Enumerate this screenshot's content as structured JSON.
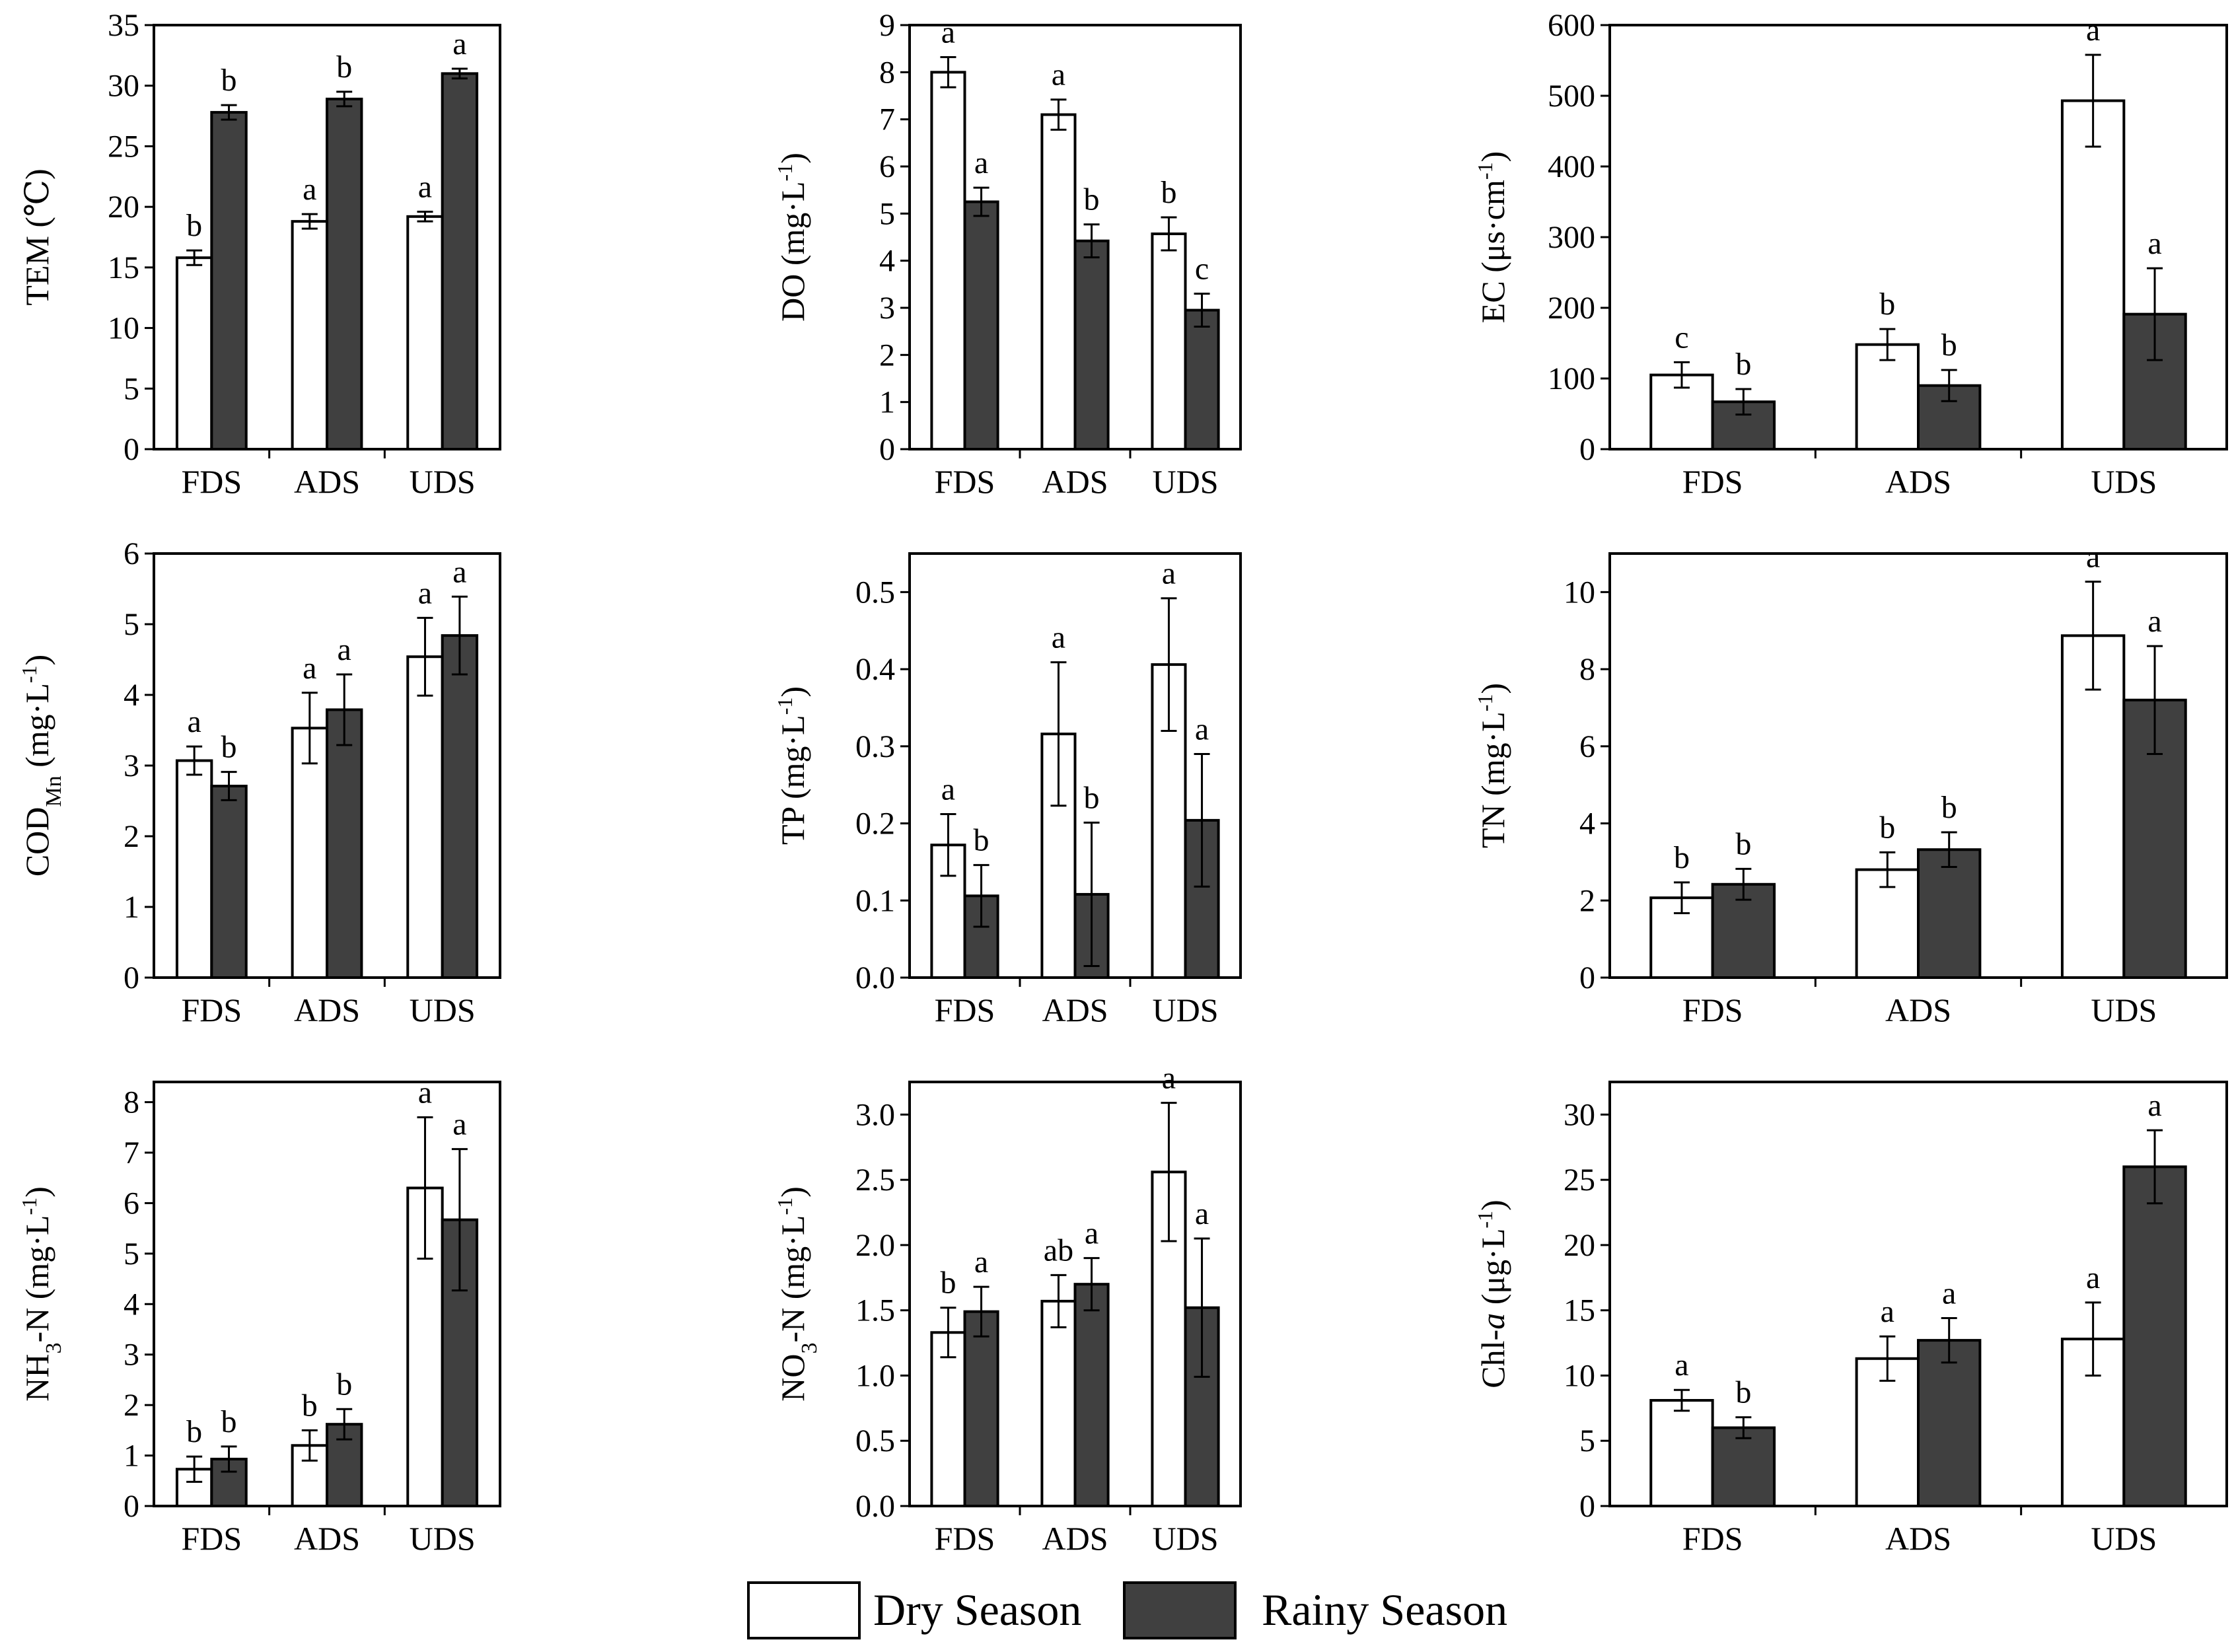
{
  "colors": {
    "dry": "#ffffff",
    "rainy": "#404040",
    "axis": "#000000"
  },
  "legend": {
    "dry_label": "Dry Season",
    "rainy_label": "Rainy Season"
  },
  "chart_data": [
    {
      "type": "bar",
      "id": "tem",
      "ylabel": "TEM (℃)",
      "ylim": [
        0,
        35
      ],
      "yticks": [
        0,
        5,
        10,
        15,
        20,
        25,
        30,
        35
      ],
      "tick_format": "0",
      "categories": [
        "FDS",
        "ADS",
        "UDS"
      ],
      "series": [
        {
          "name": "Dry Season",
          "values": [
            15.8,
            18.8,
            19.2
          ],
          "errors": [
            0.6,
            0.6,
            0.4
          ],
          "letters": [
            "b",
            "a",
            "a"
          ]
        },
        {
          "name": "Rainy Season",
          "values": [
            27.8,
            28.9,
            31.0
          ],
          "errors": [
            0.6,
            0.6,
            0.4
          ],
          "letters": [
            "b",
            "b",
            "a"
          ]
        }
      ]
    },
    {
      "type": "bar",
      "id": "do",
      "ylabel": "DO (mg·L⁻¹)",
      "ylim": [
        0,
        9
      ],
      "yticks": [
        0,
        1,
        2,
        3,
        4,
        5,
        6,
        7,
        8,
        9
      ],
      "tick_format": "0",
      "categories": [
        "FDS",
        "ADS",
        "UDS"
      ],
      "series": [
        {
          "name": "Dry Season",
          "values": [
            8.0,
            7.1,
            4.57
          ],
          "errors": [
            0.32,
            0.32,
            0.35
          ],
          "letters": [
            "a",
            "a",
            "b"
          ]
        },
        {
          "name": "Rainy Season",
          "values": [
            5.25,
            4.42,
            2.95
          ],
          "errors": [
            0.3,
            0.35,
            0.35
          ],
          "letters": [
            "a",
            "b",
            "c"
          ]
        }
      ]
    },
    {
      "type": "bar",
      "id": "ec",
      "ylabel": "EC (μs·cm⁻¹)",
      "ylim": [
        0,
        600
      ],
      "yticks": [
        0,
        100,
        200,
        300,
        400,
        500,
        600
      ],
      "tick_format": "0",
      "categories": [
        "FDS",
        "ADS",
        "UDS"
      ],
      "series": [
        {
          "name": "Dry Season",
          "values": [
            105,
            148,
            493
          ],
          "errors": [
            18,
            22,
            65
          ],
          "letters": [
            "c",
            "b",
            "a"
          ]
        },
        {
          "name": "Rainy Season",
          "values": [
            67,
            90,
            191
          ],
          "errors": [
            18,
            22,
            65
          ],
          "letters": [
            "b",
            "b",
            "a"
          ]
        }
      ]
    },
    {
      "type": "bar",
      "id": "codmn",
      "ylabel": "CODMn (mg·L⁻¹)",
      "ylim": [
        0,
        6
      ],
      "yticks": [
        0,
        1,
        2,
        3,
        4,
        5,
        6
      ],
      "tick_format": "0",
      "categories": [
        "FDS",
        "ADS",
        "UDS"
      ],
      "series": [
        {
          "name": "Dry Season",
          "values": [
            3.07,
            3.53,
            4.54
          ],
          "errors": [
            0.2,
            0.5,
            0.55
          ],
          "letters": [
            "a",
            "a",
            "a"
          ]
        },
        {
          "name": "Rainy Season",
          "values": [
            2.71,
            3.79,
            4.84
          ],
          "errors": [
            0.2,
            0.5,
            0.55
          ],
          "letters": [
            "b",
            "a",
            "a"
          ]
        }
      ]
    },
    {
      "type": "bar",
      "id": "tp",
      "ylabel": "TP (mg·L⁻¹)",
      "ylim": [
        0,
        0.55
      ],
      "yticks": [
        0.0,
        0.1,
        0.2,
        0.3,
        0.4,
        0.5
      ],
      "tick_format": "0.0",
      "categories": [
        "FDS",
        "ADS",
        "UDS"
      ],
      "series": [
        {
          "name": "Dry Season",
          "values": [
            0.172,
            0.316,
            0.406
          ],
          "errors": [
            0.04,
            0.093,
            0.086
          ],
          "letters": [
            "a",
            "a",
            "a"
          ]
        },
        {
          "name": "Rainy Season",
          "values": [
            0.106,
            0.108,
            0.204
          ],
          "errors": [
            0.04,
            0.093,
            0.086
          ],
          "letters": [
            "b",
            "b",
            "a"
          ]
        }
      ]
    },
    {
      "type": "bar",
      "id": "tn",
      "ylabel": "TN (mg·L⁻¹)",
      "ylim": [
        0,
        11
      ],
      "yticks": [
        0,
        2,
        4,
        6,
        8,
        10
      ],
      "tick_format": "0",
      "categories": [
        "FDS",
        "ADS",
        "UDS"
      ],
      "series": [
        {
          "name": "Dry Season",
          "values": [
            2.07,
            2.8,
            8.87
          ],
          "errors": [
            0.4,
            0.45,
            1.4
          ],
          "letters": [
            "b",
            "b",
            "a"
          ]
        },
        {
          "name": "Rainy Season",
          "values": [
            2.42,
            3.32,
            7.2
          ],
          "errors": [
            0.4,
            0.45,
            1.4
          ],
          "letters": [
            "b",
            "b",
            "a"
          ]
        }
      ]
    },
    {
      "type": "bar",
      "id": "nh3n",
      "ylabel": "NH3-N (mg·L⁻¹)",
      "ylim": [
        0,
        8.4
      ],
      "yticks": [
        0,
        1,
        2,
        3,
        4,
        5,
        6,
        7,
        8
      ],
      "tick_format": "0",
      "categories": [
        "FDS",
        "ADS",
        "UDS"
      ],
      "series": [
        {
          "name": "Dry Season",
          "values": [
            0.73,
            1.2,
            6.3
          ],
          "errors": [
            0.25,
            0.3,
            1.4
          ],
          "letters": [
            "b",
            "b",
            "a"
          ]
        },
        {
          "name": "Rainy Season",
          "values": [
            0.93,
            1.62,
            5.67
          ],
          "errors": [
            0.25,
            0.3,
            1.4
          ],
          "letters": [
            "b",
            "b",
            "a"
          ]
        }
      ]
    },
    {
      "type": "bar",
      "id": "no3n",
      "ylabel": "NO3-N (mg·L⁻¹)",
      "ylim": [
        0,
        3.25
      ],
      "yticks": [
        0.0,
        0.5,
        1.0,
        1.5,
        2.0,
        2.5,
        3.0
      ],
      "tick_format": "0.0",
      "categories": [
        "FDS",
        "ADS",
        "UDS"
      ],
      "series": [
        {
          "name": "Dry Season",
          "values": [
            1.33,
            1.57,
            2.56
          ],
          "errors": [
            0.19,
            0.2,
            0.53
          ],
          "letters": [
            "b",
            "ab",
            "a"
          ]
        },
        {
          "name": "Rainy Season",
          "values": [
            1.49,
            1.7,
            1.52
          ],
          "errors": [
            0.19,
            0.2,
            0.53
          ],
          "letters": [
            "a",
            "a",
            "a"
          ]
        }
      ]
    },
    {
      "type": "bar",
      "id": "chla",
      "ylabel": "Chl-a (μg·L⁻¹)",
      "ylim": [
        0,
        32.5
      ],
      "yticks": [
        0,
        5,
        10,
        15,
        20,
        25,
        30
      ],
      "tick_format": "0",
      "categories": [
        "FDS",
        "ADS",
        "UDS"
      ],
      "series": [
        {
          "name": "Dry Season",
          "values": [
            8.1,
            11.3,
            12.8
          ],
          "errors": [
            0.8,
            1.7,
            2.8
          ],
          "letters": [
            "a",
            "a",
            "a"
          ]
        },
        {
          "name": "Rainy Season",
          "values": [
            6.0,
            12.7,
            26.0
          ],
          "errors": [
            0.8,
            1.7,
            2.8
          ],
          "letters": [
            "b",
            "a",
            "a"
          ]
        }
      ]
    }
  ]
}
